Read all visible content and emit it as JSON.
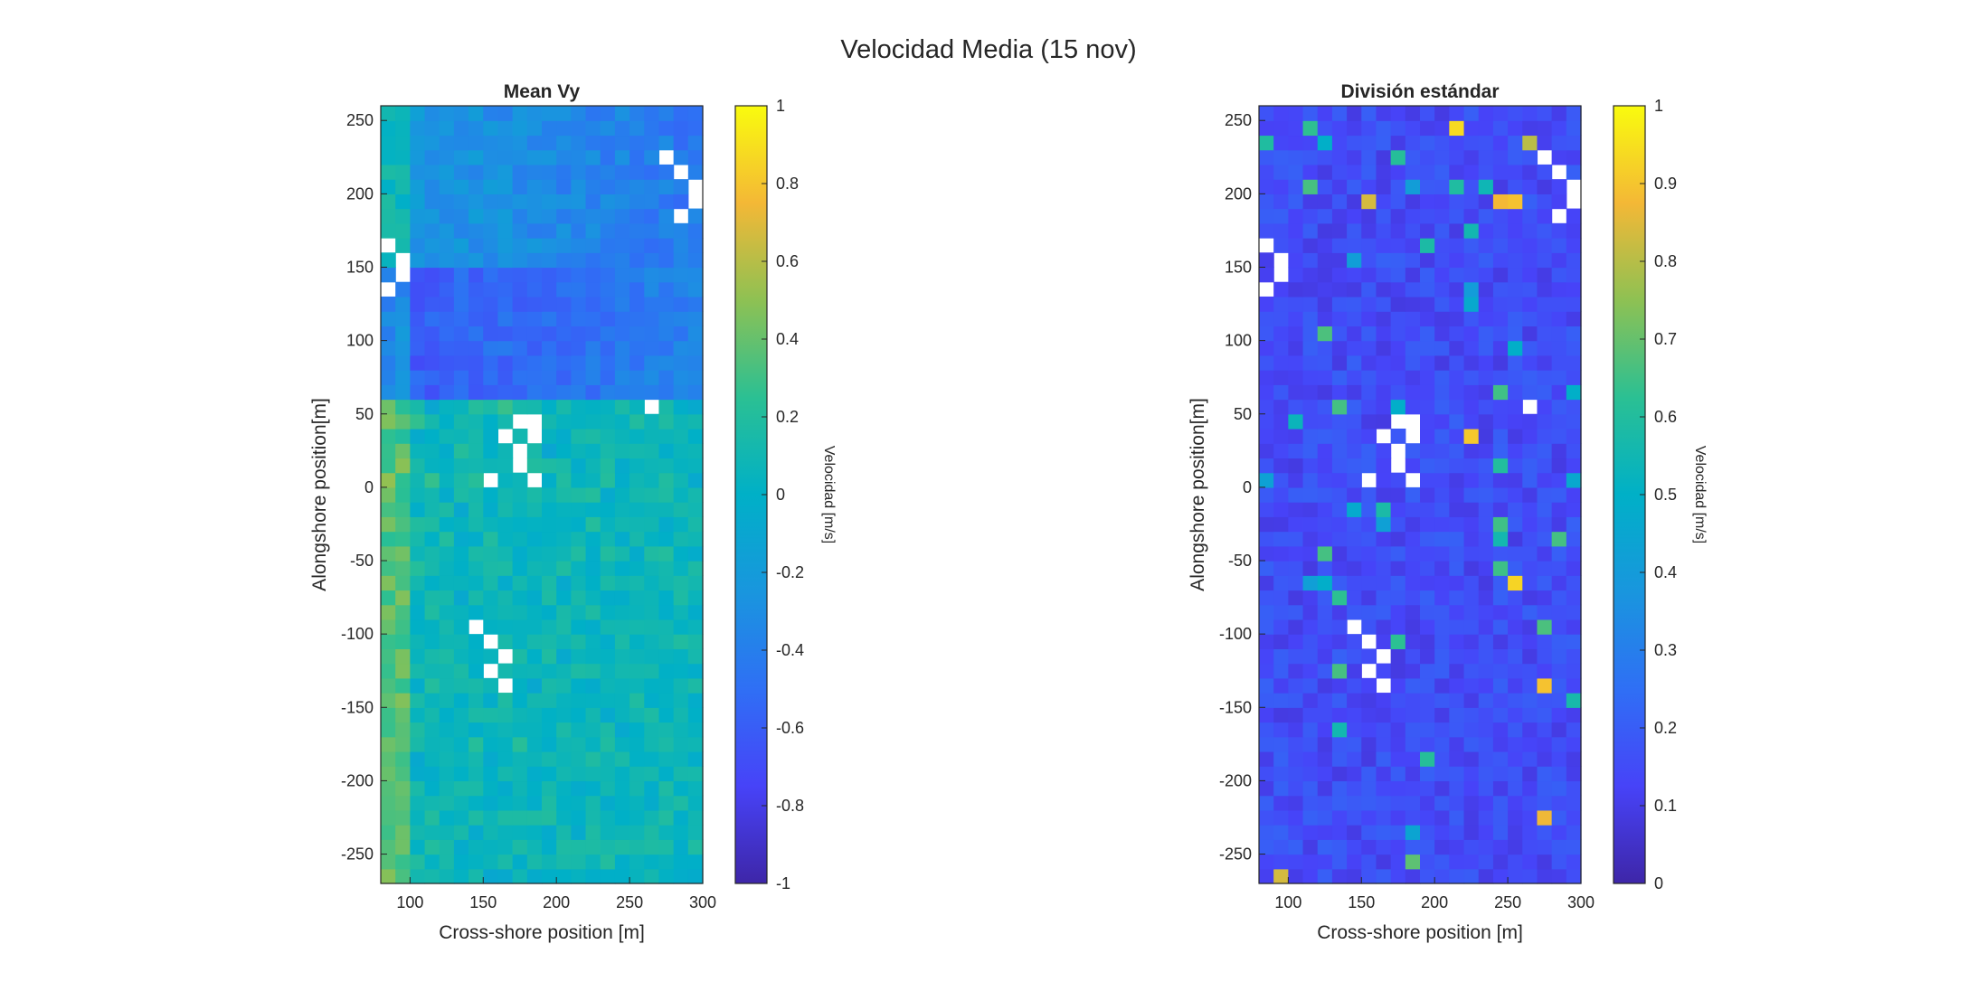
{
  "figure": {
    "suptitle": "Velocidad Media (15 nov)"
  },
  "chart_data": [
    {
      "type": "heatmap",
      "title": "Mean Vy",
      "xlabel": "Cross-shore position [m]",
      "ylabel": "Alongshore position[m]",
      "xlim": [
        80,
        300
      ],
      "ylim": [
        -270,
        260
      ],
      "xticks": [
        100,
        150,
        200,
        250,
        300
      ],
      "yticks": [
        -250,
        -200,
        -150,
        -100,
        -50,
        0,
        50,
        100,
        150,
        200,
        250
      ],
      "grid": false,
      "colorbar": {
        "label": "Velocidad [m/s]",
        "colormap": "parula",
        "clim": [
          -1,
          1
        ],
        "ticks": [
          -1,
          -0.8,
          -0.6,
          -0.4,
          -0.2,
          0,
          0.2,
          0.4,
          0.6,
          0.8,
          1
        ]
      },
      "grid_cells": {
        "nx": 22,
        "ny": 53,
        "x0": 80,
        "dx": 10,
        "y0": -270,
        "dy": 10
      },
      "value_description_rows_bottom_to_top": [
        "-270 to -200: 0.0 to 0.3",
        "-200 to -100: -0.2 to 0.2",
        "-100 to 0: -0.3 to 0.3, with higher values near x=120-130",
        "0 to 50: -0.2 to 0.5, with peaks near x=200-220",
        "50 to 150: -0.8 to -0.4",
        "150 to 260: -0.6 to 0.0"
      ]
    },
    {
      "type": "heatmap",
      "title": "División estándar",
      "xlabel": "Cross-shore position [m]",
      "ylabel": "Alongshore position[m]",
      "xlim": [
        80,
        300
      ],
      "ylim": [
        -270,
        260
      ],
      "xticks": [
        100,
        150,
        200,
        250,
        300
      ],
      "yticks": [
        -250,
        -200,
        -150,
        -100,
        -50,
        0,
        50,
        100,
        150,
        200,
        250
      ],
      "grid": false,
      "colorbar": {
        "label": "Velocidad [m/s]",
        "colormap": "parula",
        "clim": [
          0,
          1
        ],
        "ticks": [
          0,
          0.1,
          0.2,
          0.3,
          0.4,
          0.5,
          0.6,
          0.7,
          0.8,
          0.9,
          1
        ]
      },
      "grid_cells": {
        "nx": 22,
        "ny": 53,
        "x0": 80,
        "dx": 10,
        "y0": -270,
        "dy": 10
      },
      "value_description": "mostly 0.05 to 0.25, isolated cells 0.4 to 0.9"
    }
  ]
}
